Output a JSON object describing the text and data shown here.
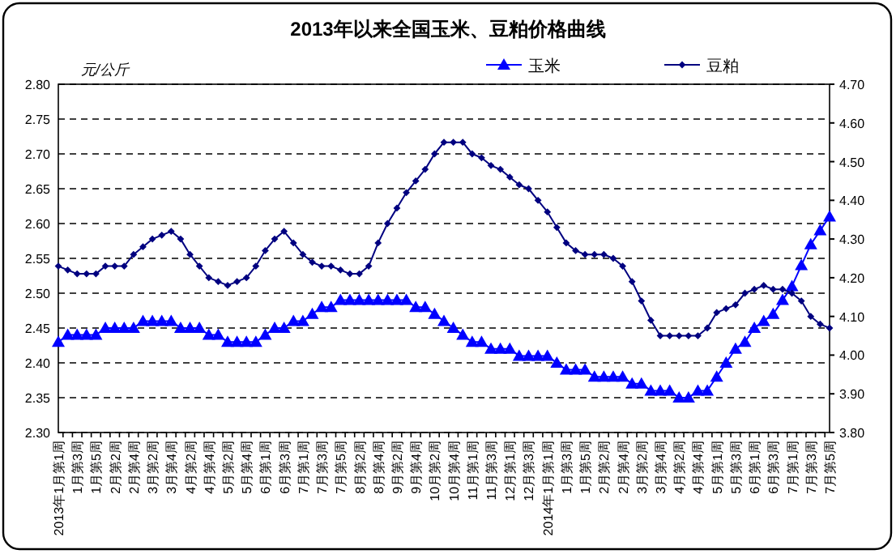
{
  "chart_data": {
    "type": "line",
    "title": "2013年以来全国玉米、豆粕价格曲线",
    "ylabel": "元/公斤",
    "categories": [
      "2013年1月第1周",
      null,
      "1月第3周",
      null,
      "1月第5周",
      null,
      "2月第2周",
      null,
      "2月第4周",
      null,
      "3月第2周",
      null,
      "3月第4周",
      null,
      "4月第2周",
      null,
      "4月第4周",
      null,
      "5月第2周",
      null,
      "5月第4周",
      null,
      "6月第1周",
      null,
      "6月第3周",
      null,
      "7月第1周",
      null,
      "7月第3周",
      null,
      "7月第5周",
      null,
      "8月第2周",
      null,
      "8月第4周",
      null,
      "9月第2周",
      null,
      "9月第4周",
      null,
      "10月第2周",
      null,
      "10月第4周",
      null,
      "11月第1周",
      null,
      "11月第3周",
      null,
      "12月第1周",
      null,
      "12月第3周",
      null,
      "2014年1月第1周",
      null,
      "1月第3周",
      null,
      "1月第5周",
      null,
      "2月第2周",
      null,
      "2月第4周",
      null,
      "3月第2周",
      null,
      "3月第4周",
      null,
      "4月第2周",
      null,
      "4月第4周",
      null,
      "5月第1周",
      null,
      "5月第3周",
      null,
      "6月第1周",
      null,
      "6月第3周",
      null,
      "7月第1周",
      null,
      "7月第3周",
      null,
      "7月第5周"
    ],
    "series": [
      {
        "name": "玉米",
        "color": "#0000ff",
        "marker": "triangle",
        "values": [
          2.43,
          2.44,
          2.44,
          2.44,
          2.44,
          2.45,
          2.45,
          2.45,
          2.45,
          2.46,
          2.46,
          2.46,
          2.46,
          2.45,
          2.45,
          2.45,
          2.44,
          2.44,
          2.43,
          2.43,
          2.43,
          2.43,
          2.44,
          2.45,
          2.45,
          2.46,
          2.46,
          2.47,
          2.48,
          2.48,
          2.49,
          2.49,
          2.49,
          2.49,
          2.49,
          2.49,
          2.49,
          2.49,
          2.48,
          2.48,
          2.47,
          2.46,
          2.45,
          2.44,
          2.43,
          2.43,
          2.42,
          2.42,
          2.42,
          2.41,
          2.41,
          2.41,
          2.41,
          2.4,
          2.39,
          2.39,
          2.39,
          2.38,
          2.38,
          2.38,
          2.38,
          2.37,
          2.37,
          2.36,
          2.36,
          2.36,
          2.35,
          2.35,
          2.36,
          2.36,
          2.38,
          2.4,
          2.42,
          2.43,
          2.45,
          2.46,
          2.47,
          2.49,
          2.51,
          2.54,
          2.57,
          2.59,
          2.61
        ]
      },
      {
        "name": "豆粕",
        "color": "#000080",
        "marker": "diamond",
        "axis": "y2",
        "values": [
          4.23,
          4.22,
          4.21,
          4.21,
          4.21,
          4.23,
          4.23,
          4.23,
          4.26,
          4.28,
          4.3,
          4.31,
          4.32,
          4.3,
          4.26,
          4.23,
          4.2,
          4.19,
          4.18,
          4.19,
          4.2,
          4.23,
          4.27,
          4.3,
          4.32,
          4.29,
          4.26,
          4.24,
          4.23,
          4.23,
          4.22,
          4.21,
          4.21,
          4.23,
          4.29,
          4.34,
          4.38,
          4.42,
          4.45,
          4.48,
          4.52,
          4.55,
          4.55,
          4.55,
          4.52,
          4.51,
          4.49,
          4.48,
          4.46,
          4.44,
          4.43,
          4.4,
          4.37,
          4.33,
          4.29,
          4.27,
          4.26,
          4.26,
          4.26,
          4.25,
          4.23,
          4.19,
          4.14,
          4.09,
          4.05,
          4.05,
          4.05,
          4.05,
          4.05,
          4.07,
          4.11,
          4.12,
          4.13,
          4.16,
          4.17,
          4.18,
          4.17,
          4.17,
          4.16,
          4.14,
          4.1,
          4.08,
          4.07
        ]
      }
    ],
    "ylim": [
      2.3,
      2.8
    ],
    "yticks": [
      {
        "value": 2.3,
        "label": "2.30"
      },
      {
        "value": 2.35,
        "label": "2.35"
      },
      {
        "value": 2.4,
        "label": "2.40"
      },
      {
        "value": 2.45,
        "label": "2.45"
      },
      {
        "value": 2.5,
        "label": "2.50"
      },
      {
        "value": 2.55,
        "label": "2.55"
      },
      {
        "value": 2.6,
        "label": "2.60"
      },
      {
        "value": 2.65,
        "label": "2.65"
      },
      {
        "value": 2.7,
        "label": "2.70"
      },
      {
        "value": 2.75,
        "label": "2.75"
      },
      {
        "value": 2.8,
        "label": "2.80"
      }
    ],
    "y2lim": [
      3.8,
      4.7
    ],
    "y2ticks": [
      {
        "value": 3.8,
        "label": "3.80"
      },
      {
        "value": 3.9,
        "label": "3.90"
      },
      {
        "value": 4.0,
        "label": "4.00"
      },
      {
        "value": 4.1,
        "label": "4.10"
      },
      {
        "value": 4.2,
        "label": "4.20"
      },
      {
        "value": 4.3,
        "label": "4.30"
      },
      {
        "value": 4.4,
        "label": "4.40"
      },
      {
        "value": 4.5,
        "label": "4.50"
      },
      {
        "value": 4.6,
        "label": "4.60"
      },
      {
        "value": 4.7,
        "label": "4.70"
      }
    ],
    "grid": "y",
    "legend": "top right",
    "line_style": "solid"
  }
}
